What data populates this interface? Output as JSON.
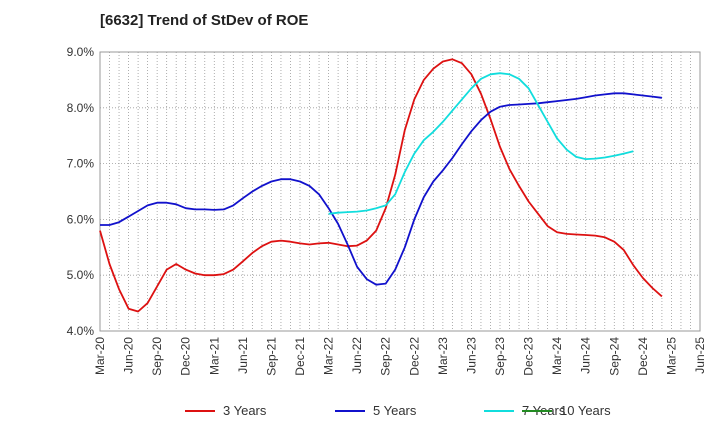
{
  "chart_data": {
    "type": "line",
    "title": "[6632]  Trend of StDev of ROE",
    "xlabel": "",
    "ylabel": "",
    "ylim": [
      4.0,
      9.0
    ],
    "yticks": [
      "4.0%",
      "5.0%",
      "6.0%",
      "7.0%",
      "8.0%",
      "9.0%"
    ],
    "xticks": [
      "Mar-20",
      "Jun-20",
      "Sep-20",
      "Dec-20",
      "Mar-21",
      "Jun-21",
      "Sep-21",
      "Dec-21",
      "Mar-22",
      "Jun-22",
      "Sep-22",
      "Dec-22",
      "Mar-23",
      "Jun-23",
      "Sep-23",
      "Dec-23",
      "Mar-24",
      "Jun-24",
      "Sep-24",
      "Dec-24",
      "Mar-25",
      "Jun-25"
    ],
    "grid": true,
    "legend_position": "bottom",
    "series": [
      {
        "name": "3 Years",
        "color": "#dd1111",
        "points": [
          [
            0,
            5.8
          ],
          [
            1,
            5.2
          ],
          [
            2,
            4.75
          ],
          [
            3,
            4.4
          ],
          [
            4,
            4.35
          ],
          [
            5,
            4.5
          ],
          [
            6,
            4.8
          ],
          [
            7,
            5.1
          ],
          [
            8,
            5.2
          ],
          [
            9,
            5.1
          ],
          [
            10,
            5.03
          ],
          [
            11,
            5.0
          ],
          [
            12,
            5.0
          ],
          [
            13,
            5.02
          ],
          [
            14,
            5.1
          ],
          [
            15,
            5.25
          ],
          [
            16,
            5.4
          ],
          [
            17,
            5.52
          ],
          [
            18,
            5.6
          ],
          [
            19,
            5.62
          ],
          [
            20,
            5.6
          ],
          [
            21,
            5.57
          ],
          [
            22,
            5.55
          ],
          [
            23,
            5.57
          ],
          [
            24,
            5.58
          ],
          [
            25,
            5.55
          ],
          [
            26,
            5.52
          ],
          [
            27,
            5.53
          ],
          [
            28,
            5.62
          ],
          [
            29,
            5.8
          ],
          [
            30,
            6.2
          ],
          [
            31,
            6.8
          ],
          [
            32,
            7.6
          ],
          [
            33,
            8.15
          ],
          [
            34,
            8.5
          ],
          [
            35,
            8.7
          ],
          [
            36,
            8.83
          ],
          [
            37,
            8.87
          ],
          [
            38,
            8.8
          ],
          [
            39,
            8.6
          ],
          [
            40,
            8.25
          ],
          [
            41,
            7.8
          ],
          [
            42,
            7.3
          ],
          [
            43,
            6.9
          ],
          [
            44,
            6.6
          ],
          [
            45,
            6.32
          ],
          [
            46,
            6.1
          ],
          [
            47,
            5.88
          ],
          [
            48,
            5.77
          ],
          [
            49,
            5.74
          ],
          [
            50,
            5.73
          ],
          [
            51,
            5.72
          ],
          [
            52,
            5.71
          ],
          [
            53,
            5.68
          ],
          [
            54,
            5.6
          ],
          [
            55,
            5.45
          ],
          [
            56,
            5.18
          ],
          [
            57,
            4.95
          ],
          [
            58,
            4.77
          ],
          [
            59,
            4.62
          ]
        ]
      },
      {
        "name": "5 Years",
        "color": "#1111cc",
        "points": [
          [
            0,
            5.9
          ],
          [
            1,
            5.9
          ],
          [
            2,
            5.95
          ],
          [
            3,
            6.05
          ],
          [
            4,
            6.15
          ],
          [
            5,
            6.25
          ],
          [
            6,
            6.3
          ],
          [
            7,
            6.3
          ],
          [
            8,
            6.27
          ],
          [
            9,
            6.2
          ],
          [
            10,
            6.18
          ],
          [
            11,
            6.18
          ],
          [
            12,
            6.17
          ],
          [
            13,
            6.18
          ],
          [
            14,
            6.25
          ],
          [
            15,
            6.38
          ],
          [
            16,
            6.5
          ],
          [
            17,
            6.6
          ],
          [
            18,
            6.68
          ],
          [
            19,
            6.72
          ],
          [
            20,
            6.72
          ],
          [
            21,
            6.68
          ],
          [
            22,
            6.6
          ],
          [
            23,
            6.45
          ],
          [
            24,
            6.2
          ],
          [
            25,
            5.92
          ],
          [
            26,
            5.55
          ],
          [
            27,
            5.15
          ],
          [
            28,
            4.93
          ],
          [
            29,
            4.83
          ],
          [
            30,
            4.85
          ],
          [
            31,
            5.1
          ],
          [
            32,
            5.5
          ],
          [
            33,
            6.0
          ],
          [
            34,
            6.4
          ],
          [
            35,
            6.68
          ],
          [
            36,
            6.88
          ],
          [
            37,
            7.1
          ],
          [
            38,
            7.35
          ],
          [
            39,
            7.58
          ],
          [
            40,
            7.78
          ],
          [
            41,
            7.93
          ],
          [
            42,
            8.02
          ],
          [
            43,
            8.05
          ],
          [
            44,
            8.06
          ],
          [
            45,
            8.07
          ],
          [
            46,
            8.08
          ],
          [
            47,
            8.1
          ],
          [
            48,
            8.12
          ],
          [
            49,
            8.14
          ],
          [
            50,
            8.16
          ],
          [
            51,
            8.19
          ],
          [
            52,
            8.22
          ],
          [
            53,
            8.24
          ],
          [
            54,
            8.26
          ],
          [
            55,
            8.26
          ],
          [
            56,
            8.24
          ],
          [
            57,
            8.22
          ],
          [
            58,
            8.2
          ],
          [
            59,
            8.18
          ]
        ]
      },
      {
        "name": "7 Years",
        "color": "#11dddd",
        "points": [
          [
            24,
            6.1
          ],
          [
            25,
            6.12
          ],
          [
            26,
            6.13
          ],
          [
            27,
            6.14
          ],
          [
            28,
            6.16
          ],
          [
            29,
            6.2
          ],
          [
            30,
            6.25
          ],
          [
            31,
            6.45
          ],
          [
            32,
            6.85
          ],
          [
            33,
            7.18
          ],
          [
            34,
            7.42
          ],
          [
            35,
            7.57
          ],
          [
            36,
            7.75
          ],
          [
            37,
            7.95
          ],
          [
            38,
            8.15
          ],
          [
            39,
            8.35
          ],
          [
            40,
            8.52
          ],
          [
            41,
            8.6
          ],
          [
            42,
            8.62
          ],
          [
            43,
            8.6
          ],
          [
            44,
            8.52
          ],
          [
            45,
            8.35
          ],
          [
            46,
            8.05
          ],
          [
            47,
            7.75
          ],
          [
            48,
            7.45
          ],
          [
            49,
            7.25
          ],
          [
            50,
            7.12
          ],
          [
            51,
            7.08
          ],
          [
            52,
            7.09
          ],
          [
            53,
            7.11
          ],
          [
            54,
            7.14
          ],
          [
            55,
            7.18
          ],
          [
            56,
            7.22
          ]
        ]
      },
      {
        "name": "10 Years",
        "color": "#228b22",
        "points": []
      }
    ]
  }
}
